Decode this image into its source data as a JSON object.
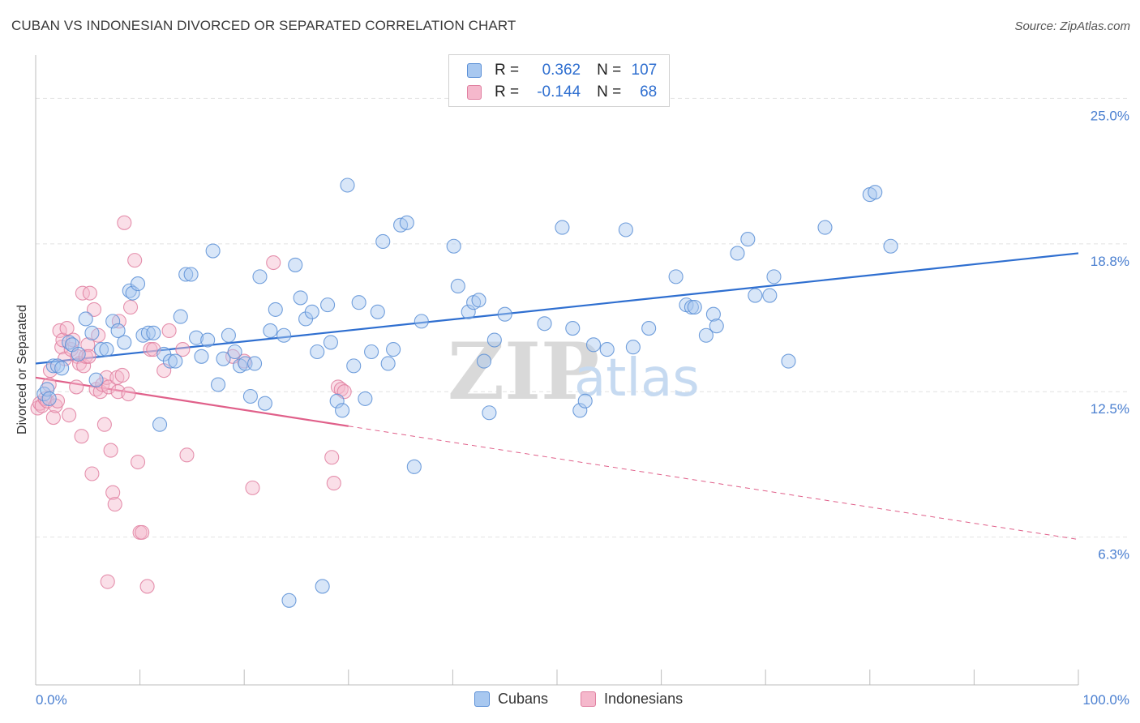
{
  "title": "CUBAN VS INDONESIAN DIVORCED OR SEPARATED CORRELATION CHART",
  "source": "Source: ZipAtlas.com",
  "colors": {
    "cubans_fill": "#a8c8f0",
    "cubans_stroke": "#5a8fd6",
    "cubans_line": "#2f6fd0",
    "indonesians_fill": "#f5b8cc",
    "indonesians_stroke": "#e07fa0",
    "indonesians_line": "#e0608a",
    "tick_text": "#4a7fd0",
    "grid": "#e2e2e2"
  },
  "legend": {
    "rows": [
      {
        "r_label": "R =",
        "r_value": "0.362",
        "n_label": "N =",
        "n_value": "107"
      },
      {
        "r_label": "R =",
        "r_value": "-0.144",
        "n_label": "N =",
        "n_value": "68"
      }
    ]
  },
  "watermark": {
    "zip": "ZIP",
    "atlas": "atlas"
  },
  "chart_data": {
    "type": "scatter",
    "title": "CUBAN VS INDONESIAN DIVORCED OR SEPARATED CORRELATION CHART",
    "xlabel": "",
    "ylabel": "Divorced or Separated",
    "xlim": [
      0,
      100
    ],
    "ylim": [
      0,
      26.5
    ],
    "x_tick_labels": [
      "0.0%",
      "100.0%"
    ],
    "y_ticks": [
      6.3,
      12.5,
      18.8,
      25.0
    ],
    "y_tick_labels": [
      "6.3%",
      "12.5%",
      "18.8%",
      "25.0%"
    ],
    "grid": true,
    "legend_placement": "top-center",
    "series": [
      {
        "name": "Cubans",
        "trend": {
          "x0": 0,
          "y0": 13.7,
          "x1": 100,
          "y1": 18.4,
          "solid_until": 100
        },
        "points": [
          [
            0.8,
            12.4
          ],
          [
            1.1,
            12.6
          ],
          [
            1.3,
            12.2
          ],
          [
            1.7,
            13.6
          ],
          [
            2.1,
            13.6
          ],
          [
            2.5,
            13.5
          ],
          [
            3.2,
            14.6
          ],
          [
            3.5,
            14.5
          ],
          [
            4.1,
            14.1
          ],
          [
            4.8,
            15.6
          ],
          [
            5.4,
            15.0
          ],
          [
            5.8,
            13.0
          ],
          [
            6.3,
            14.3
          ],
          [
            6.8,
            14.3
          ],
          [
            7.4,
            15.5
          ],
          [
            7.9,
            15.1
          ],
          [
            8.5,
            14.6
          ],
          [
            9.0,
            16.8
          ],
          [
            9.3,
            16.7
          ],
          [
            9.8,
            17.1
          ],
          [
            10.3,
            14.9
          ],
          [
            10.8,
            15.0
          ],
          [
            11.3,
            15.0
          ],
          [
            11.9,
            11.1
          ],
          [
            12.3,
            14.1
          ],
          [
            12.9,
            13.8
          ],
          [
            13.4,
            13.8
          ],
          [
            13.9,
            15.7
          ],
          [
            14.4,
            17.5
          ],
          [
            14.9,
            17.5
          ],
          [
            15.4,
            14.8
          ],
          [
            15.9,
            14.0
          ],
          [
            16.5,
            14.7
          ],
          [
            17.0,
            18.5
          ],
          [
            17.5,
            12.8
          ],
          [
            18.0,
            13.9
          ],
          [
            18.5,
            14.9
          ],
          [
            19.1,
            14.2
          ],
          [
            19.6,
            13.6
          ],
          [
            20.1,
            13.7
          ],
          [
            20.6,
            12.3
          ],
          [
            21.0,
            13.7
          ],
          [
            21.5,
            17.4
          ],
          [
            22.0,
            12.0
          ],
          [
            22.5,
            15.1
          ],
          [
            23.0,
            16.0
          ],
          [
            23.8,
            14.9
          ],
          [
            24.3,
            3.6
          ],
          [
            24.9,
            17.9
          ],
          [
            25.4,
            16.5
          ],
          [
            25.9,
            15.6
          ],
          [
            26.5,
            15.9
          ],
          [
            27.0,
            14.2
          ],
          [
            27.5,
            4.2
          ],
          [
            28.0,
            16.2
          ],
          [
            28.3,
            14.6
          ],
          [
            28.9,
            12.1
          ],
          [
            29.4,
            11.7
          ],
          [
            29.9,
            21.3
          ],
          [
            30.5,
            13.6
          ],
          [
            31.0,
            16.3
          ],
          [
            31.6,
            12.2
          ],
          [
            32.2,
            14.2
          ],
          [
            32.8,
            15.9
          ],
          [
            33.3,
            18.9
          ],
          [
            33.8,
            13.7
          ],
          [
            34.3,
            14.3
          ],
          [
            35.0,
            19.6
          ],
          [
            35.6,
            19.7
          ],
          [
            36.3,
            9.3
          ],
          [
            37.0,
            15.5
          ],
          [
            40.1,
            18.7
          ],
          [
            40.5,
            17.0
          ],
          [
            41.5,
            15.9
          ],
          [
            42.0,
            16.3
          ],
          [
            42.5,
            16.4
          ],
          [
            43.0,
            13.8
          ],
          [
            43.5,
            11.6
          ],
          [
            44.0,
            14.7
          ],
          [
            45.0,
            15.8
          ],
          [
            48.8,
            15.4
          ],
          [
            50.5,
            19.5
          ],
          [
            51.5,
            15.2
          ],
          [
            52.2,
            11.7
          ],
          [
            52.7,
            12.1
          ],
          [
            53.5,
            14.5
          ],
          [
            54.8,
            14.3
          ],
          [
            56.6,
            19.4
          ],
          [
            57.3,
            14.4
          ],
          [
            58.8,
            15.2
          ],
          [
            61.4,
            17.4
          ],
          [
            62.4,
            16.2
          ],
          [
            62.9,
            16.1
          ],
          [
            63.2,
            16.1
          ],
          [
            64.3,
            14.9
          ],
          [
            65.0,
            15.8
          ],
          [
            65.3,
            15.3
          ],
          [
            67.3,
            18.4
          ],
          [
            68.3,
            19.0
          ],
          [
            69.0,
            16.6
          ],
          [
            70.4,
            16.6
          ],
          [
            70.8,
            17.4
          ],
          [
            72.2,
            13.8
          ],
          [
            75.7,
            19.5
          ],
          [
            80.0,
            20.9
          ],
          [
            80.5,
            21.0
          ],
          [
            82.0,
            18.7
          ]
        ]
      },
      {
        "name": "Indonesians",
        "trend": {
          "x0": 0,
          "y0": 13.1,
          "x1": 100,
          "y1": 6.2,
          "solid_until": 30
        },
        "points": [
          [
            0.2,
            11.8
          ],
          [
            0.4,
            12.0
          ],
          [
            0.6,
            11.9
          ],
          [
            0.9,
            12.2
          ],
          [
            1.1,
            12.1
          ],
          [
            1.3,
            12.8
          ],
          [
            1.4,
            13.4
          ],
          [
            1.7,
            11.4
          ],
          [
            1.9,
            11.9
          ],
          [
            2.1,
            12.1
          ],
          [
            2.3,
            15.1
          ],
          [
            2.5,
            14.4
          ],
          [
            2.6,
            14.7
          ],
          [
            2.8,
            13.9
          ],
          [
            3.0,
            15.2
          ],
          [
            3.2,
            11.5
          ],
          [
            3.4,
            14.3
          ],
          [
            3.6,
            14.7
          ],
          [
            3.9,
            12.7
          ],
          [
            4.0,
            14.0
          ],
          [
            4.2,
            13.7
          ],
          [
            4.4,
            10.6
          ],
          [
            4.5,
            16.7
          ],
          [
            4.6,
            13.6
          ],
          [
            4.8,
            14.0
          ],
          [
            5.0,
            14.5
          ],
          [
            5.1,
            14.0
          ],
          [
            5.2,
            16.7
          ],
          [
            5.4,
            9.0
          ],
          [
            5.6,
            16.0
          ],
          [
            5.8,
            12.6
          ],
          [
            6.0,
            14.9
          ],
          [
            6.2,
            12.5
          ],
          [
            6.4,
            12.8
          ],
          [
            6.6,
            11.1
          ],
          [
            6.8,
            13.1
          ],
          [
            6.9,
            4.4
          ],
          [
            7.0,
            12.7
          ],
          [
            7.2,
            10.0
          ],
          [
            7.4,
            8.2
          ],
          [
            7.6,
            7.7
          ],
          [
            7.8,
            13.1
          ],
          [
            7.9,
            12.5
          ],
          [
            8.0,
            15.5
          ],
          [
            8.3,
            13.2
          ],
          [
            8.5,
            19.7
          ],
          [
            8.9,
            12.4
          ],
          [
            9.1,
            16.1
          ],
          [
            9.5,
            18.1
          ],
          [
            9.8,
            9.5
          ],
          [
            10.0,
            6.5
          ],
          [
            10.2,
            6.5
          ],
          [
            10.7,
            4.2
          ],
          [
            11.0,
            14.3
          ],
          [
            11.3,
            14.3
          ],
          [
            12.3,
            13.4
          ],
          [
            12.8,
            15.1
          ],
          [
            14.1,
            14.3
          ],
          [
            14.5,
            9.8
          ],
          [
            18.9,
            14.0
          ],
          [
            20.0,
            13.8
          ],
          [
            20.8,
            8.4
          ],
          [
            22.8,
            18.0
          ],
          [
            28.4,
            9.7
          ],
          [
            28.6,
            8.6
          ],
          [
            29.0,
            12.7
          ],
          [
            29.3,
            12.6
          ],
          [
            29.6,
            12.5
          ]
        ]
      }
    ]
  }
}
